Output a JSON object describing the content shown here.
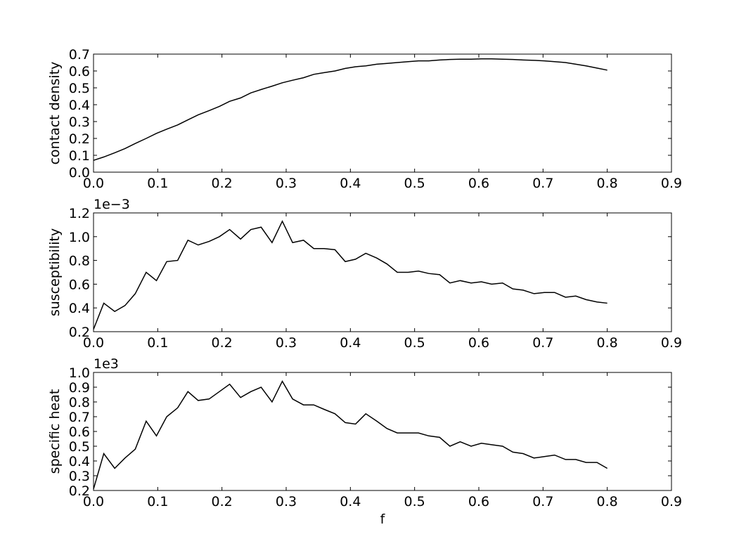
{
  "chart_data": [
    {
      "type": "line",
      "ylabel": "contact density",
      "x": [
        0,
        0.016,
        0.033,
        0.049,
        0.065,
        0.082,
        0.098,
        0.114,
        0.131,
        0.147,
        0.163,
        0.18,
        0.196,
        0.212,
        0.229,
        0.245,
        0.261,
        0.278,
        0.294,
        0.31,
        0.327,
        0.343,
        0.359,
        0.376,
        0.392,
        0.408,
        0.424,
        0.441,
        0.457,
        0.473,
        0.49,
        0.506,
        0.522,
        0.539,
        0.555,
        0.571,
        0.588,
        0.604,
        0.62,
        0.637,
        0.653,
        0.669,
        0.686,
        0.702,
        0.718,
        0.735,
        0.751,
        0.767,
        0.784,
        0.8
      ],
      "values": [
        0.07,
        0.09,
        0.115,
        0.14,
        0.17,
        0.2,
        0.23,
        0.255,
        0.28,
        0.31,
        0.34,
        0.365,
        0.39,
        0.42,
        0.44,
        0.47,
        0.49,
        0.51,
        0.53,
        0.545,
        0.56,
        0.58,
        0.59,
        0.6,
        0.615,
        0.625,
        0.63,
        0.64,
        0.645,
        0.65,
        0.655,
        0.66,
        0.66,
        0.665,
        0.668,
        0.67,
        0.67,
        0.672,
        0.672,
        0.67,
        0.668,
        0.665,
        0.663,
        0.66,
        0.655,
        0.65,
        0.64,
        0.63,
        0.617,
        0.605
      ],
      "color": "#000000",
      "xlim": [
        0,
        0.9
      ],
      "xticks": [
        {
          "value": 0,
          "label": "0.0"
        },
        0.1,
        0.2,
        0.3,
        0.4,
        0.5,
        0.6,
        0.7,
        0.8,
        0.9
      ],
      "ylim": [
        0,
        0.7
      ],
      "yticks": [
        {
          "value": 0,
          "label": "0.0"
        },
        0.1,
        0.2,
        0.3,
        0.4,
        0.5,
        0.6,
        0.7
      ]
    },
    {
      "type": "line",
      "ylabel": "susceptibility",
      "offset_text": "1e−3",
      "x": [
        0,
        0.016,
        0.033,
        0.049,
        0.065,
        0.082,
        0.098,
        0.114,
        0.131,
        0.147,
        0.163,
        0.18,
        0.196,
        0.212,
        0.229,
        0.245,
        0.261,
        0.278,
        0.294,
        0.31,
        0.327,
        0.343,
        0.359,
        0.376,
        0.392,
        0.408,
        0.424,
        0.441,
        0.457,
        0.473,
        0.49,
        0.506,
        0.522,
        0.539,
        0.555,
        0.571,
        0.588,
        0.604,
        0.62,
        0.637,
        0.653,
        0.669,
        0.686,
        0.702,
        0.718,
        0.735,
        0.751,
        0.767,
        0.784,
        0.8
      ],
      "values": [
        0.22,
        0.44,
        0.37,
        0.42,
        0.52,
        0.7,
        0.63,
        0.79,
        0.8,
        0.97,
        0.93,
        0.96,
        1.0,
        1.06,
        0.98,
        1.06,
        1.08,
        0.95,
        1.13,
        0.95,
        0.97,
        0.9,
        0.9,
        0.89,
        0.79,
        0.81,
        0.86,
        0.82,
        0.77,
        0.7,
        0.7,
        0.71,
        0.69,
        0.68,
        0.61,
        0.63,
        0.61,
        0.62,
        0.6,
        0.61,
        0.56,
        0.55,
        0.52,
        0.53,
        0.53,
        0.49,
        0.5,
        0.47,
        0.45,
        0.44
      ],
      "color": "#000000",
      "xlim": [
        0,
        0.9
      ],
      "xticks": [
        {
          "value": 0,
          "label": "0.0"
        },
        0.1,
        0.2,
        0.3,
        0.4,
        0.5,
        0.6,
        0.7,
        0.8,
        0.9
      ],
      "ylim": [
        0.2,
        1.2
      ],
      "yticks": [
        0.2,
        0.4,
        0.6,
        0.8,
        {
          "value": 1,
          "label": "1.0"
        },
        1.2
      ]
    },
    {
      "type": "line",
      "ylabel": "specific heat",
      "offset_text": "1e3",
      "xlabel": "f",
      "x": [
        0,
        0.016,
        0.033,
        0.049,
        0.065,
        0.082,
        0.098,
        0.114,
        0.131,
        0.147,
        0.163,
        0.18,
        0.196,
        0.212,
        0.229,
        0.245,
        0.261,
        0.278,
        0.294,
        0.31,
        0.327,
        0.343,
        0.359,
        0.376,
        0.392,
        0.408,
        0.424,
        0.441,
        0.457,
        0.473,
        0.49,
        0.506,
        0.522,
        0.539,
        0.555,
        0.571,
        0.588,
        0.604,
        0.62,
        0.637,
        0.653,
        0.669,
        0.686,
        0.702,
        0.718,
        0.735,
        0.751,
        0.767,
        0.784,
        0.8
      ],
      "values": [
        0.21,
        0.45,
        0.35,
        0.42,
        0.48,
        0.67,
        0.57,
        0.7,
        0.76,
        0.87,
        0.81,
        0.82,
        0.87,
        0.92,
        0.83,
        0.87,
        0.9,
        0.8,
        0.94,
        0.82,
        0.78,
        0.78,
        0.75,
        0.72,
        0.66,
        0.65,
        0.72,
        0.67,
        0.62,
        0.59,
        0.59,
        0.59,
        0.57,
        0.56,
        0.5,
        0.53,
        0.5,
        0.52,
        0.51,
        0.5,
        0.46,
        0.45,
        0.42,
        0.43,
        0.44,
        0.41,
        0.41,
        0.39,
        0.39,
        0.35
      ],
      "color": "#000000",
      "xlim": [
        0,
        0.9
      ],
      "xticks": [
        {
          "value": 0,
          "label": "0.0"
        },
        0.1,
        0.2,
        0.3,
        0.4,
        0.5,
        0.6,
        0.7,
        0.8,
        0.9
      ],
      "ylim": [
        0.2,
        1.0
      ],
      "yticks": [
        0.2,
        0.3,
        0.4,
        0.5,
        0.6,
        0.7,
        0.8,
        0.9,
        {
          "value": 1,
          "label": "1.0"
        }
      ]
    }
  ]
}
